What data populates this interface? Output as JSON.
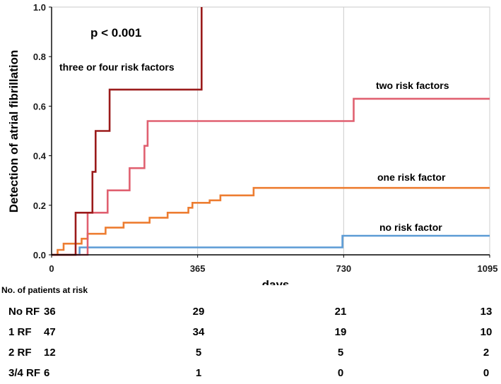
{
  "chart_data": {
    "type": "line",
    "title": "",
    "xlabel": "days",
    "ylabel": "Detection of atrial fibrillation",
    "xlim": [
      0,
      1095
    ],
    "ylim": [
      0,
      1.0
    ],
    "x_ticks": [
      0,
      365,
      730,
      1095
    ],
    "y_ticks": [
      0.0,
      0.2,
      0.4,
      0.6,
      0.8,
      1.0
    ],
    "x_tick_labels": [
      "0",
      "365",
      "730",
      "1095"
    ],
    "y_tick_labels": [
      "0.0",
      "0.2",
      "0.4",
      "0.6",
      "0.8",
      "1.0"
    ],
    "annotation": "p < 0.001",
    "series": [
      {
        "name": "no risk factor",
        "color": "#5b9bd5",
        "steps": [
          [
            0,
            0
          ],
          [
            70,
            0
          ],
          [
            70,
            0.03
          ],
          [
            727,
            0.03
          ],
          [
            727,
            0.077
          ],
          [
            1095,
            0.077
          ]
        ]
      },
      {
        "name": "one risk factor",
        "color": "#ed7d31",
        "steps": [
          [
            0,
            0
          ],
          [
            15,
            0
          ],
          [
            15,
            0.02
          ],
          [
            30,
            0.02
          ],
          [
            30,
            0.045
          ],
          [
            75,
            0.045
          ],
          [
            75,
            0.065
          ],
          [
            90,
            0.065
          ],
          [
            90,
            0.085
          ],
          [
            135,
            0.085
          ],
          [
            135,
            0.11
          ],
          [
            180,
            0.11
          ],
          [
            180,
            0.13
          ],
          [
            245,
            0.13
          ],
          [
            245,
            0.15
          ],
          [
            290,
            0.15
          ],
          [
            290,
            0.17
          ],
          [
            342,
            0.17
          ],
          [
            342,
            0.19
          ],
          [
            352,
            0.19
          ],
          [
            352,
            0.21
          ],
          [
            395,
            0.21
          ],
          [
            395,
            0.22
          ],
          [
            422,
            0.22
          ],
          [
            422,
            0.24
          ],
          [
            505,
            0.24
          ],
          [
            505,
            0.27
          ],
          [
            1095,
            0.27
          ]
        ]
      },
      {
        "name": "two risk factors",
        "color": "#e06070",
        "steps": [
          [
            0,
            0
          ],
          [
            90,
            0
          ],
          [
            90,
            0.17
          ],
          [
            140,
            0.17
          ],
          [
            140,
            0.26
          ],
          [
            195,
            0.26
          ],
          [
            195,
            0.35
          ],
          [
            232,
            0.35
          ],
          [
            232,
            0.44
          ],
          [
            240,
            0.44
          ],
          [
            240,
            0.54
          ],
          [
            755,
            0.54
          ],
          [
            755,
            0.63
          ],
          [
            1095,
            0.63
          ]
        ]
      },
      {
        "name": "three or four risk factors",
        "color": "#9b1b1b",
        "steps": [
          [
            0,
            0
          ],
          [
            60,
            0
          ],
          [
            60,
            0.17
          ],
          [
            102,
            0.17
          ],
          [
            102,
            0.335
          ],
          [
            110,
            0.335
          ],
          [
            110,
            0.5
          ],
          [
            145,
            0.5
          ],
          [
            145,
            0.667
          ],
          [
            375,
            0.667
          ],
          [
            375,
            1.0
          ]
        ]
      }
    ],
    "risk_table": {
      "title": "No. of patients at risk",
      "columns_days": [
        0,
        365,
        730,
        1095
      ],
      "rows": [
        {
          "name": "No RF",
          "values": [
            "36",
            "29",
            "21",
            "13"
          ]
        },
        {
          "name": "1 RF",
          "values": [
            "47",
            "34",
            "19",
            "10"
          ]
        },
        {
          "name": "2 RF",
          "values": [
            "12",
            "5",
            "5",
            "2"
          ]
        },
        {
          "name": "3/4 RF",
          "values": [
            "6",
            "1",
            "0",
            "0"
          ]
        }
      ]
    }
  }
}
